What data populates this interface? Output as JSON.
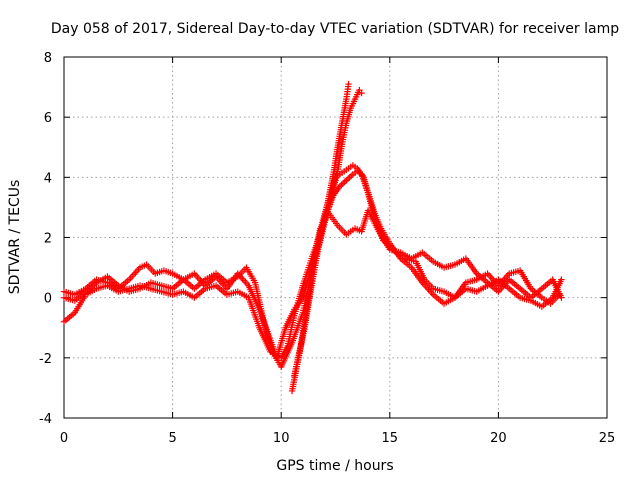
{
  "chart_data": {
    "type": "scatter",
    "title": "Day 058 of 2017, Sidereal Day-to-day VTEC variation (SDTVAR) for receiver lamp",
    "xlabel": "GPS time / hours",
    "ylabel": "SDTVAR / TECUs",
    "xlim": [
      0,
      25
    ],
    "ylim": [
      -4,
      8
    ],
    "xticks": [
      "0",
      "5",
      "10",
      "15",
      "20",
      "25"
    ],
    "yticks": [
      "-4",
      "-2",
      "0",
      "2",
      "4",
      "6",
      "8"
    ],
    "grid": true,
    "legend": "none",
    "marker": "plus",
    "color": "#ff0000",
    "series": [
      {
        "name": "track-1",
        "x": [
          0.0,
          0.5,
          1.0,
          1.5,
          2.0,
          2.5,
          3.0,
          3.5,
          3.8,
          4.2,
          4.6,
          5.0,
          5.5,
          6.0,
          6.5,
          7.0,
          7.5,
          8.0,
          8.4,
          8.8,
          9.2,
          9.6,
          10.0,
          10.5,
          11.0,
          11.3,
          11.6,
          11.9,
          12.2,
          12.5,
          12.7,
          12.9,
          13.1,
          13.3,
          13.5,
          13.8,
          14.1,
          14.4,
          14.7,
          15.0,
          15.3,
          15.7,
          16.2,
          16.6,
          17.0,
          17.5,
          18.0,
          18.5,
          19.0,
          19.5,
          20.0,
          20.5,
          21.0,
          21.5,
          22.0,
          22.4,
          22.8
        ],
        "y": [
          0.2,
          0.1,
          0.3,
          0.6,
          0.5,
          0.3,
          0.6,
          1.0,
          1.1,
          0.8,
          0.9,
          0.8,
          0.6,
          0.3,
          0.6,
          0.8,
          0.5,
          0.7,
          1.0,
          0.5,
          -0.8,
          -1.8,
          -2.3,
          -1.5,
          -0.5,
          0.5,
          1.5,
          2.5,
          3.3,
          4.0,
          4.1,
          4.2,
          4.3,
          4.4,
          4.3,
          4.0,
          3.2,
          2.4,
          1.9,
          1.7,
          1.5,
          1.3,
          1.2,
          0.6,
          0.3,
          0.2,
          0.0,
          0.5,
          0.6,
          0.8,
          0.4,
          0.8,
          0.9,
          0.3,
          0.0,
          -0.2,
          0.1
        ]
      },
      {
        "name": "track-2",
        "x": [
          0.0,
          0.5,
          1.0,
          1.5,
          2.0,
          2.5,
          3.0,
          3.5,
          4.0,
          4.5,
          5.0,
          5.5,
          6.0,
          6.5,
          7.0,
          7.5,
          8.0,
          8.5,
          9.0,
          9.5,
          10.0,
          10.3,
          10.6,
          11.0,
          11.4,
          11.8,
          12.1,
          12.4,
          12.7,
          13.0,
          13.3,
          13.5,
          13.7,
          14.0,
          14.3,
          14.6,
          15.0,
          15.5,
          16.0,
          16.5,
          17.0,
          17.5,
          18.0,
          18.5,
          19.0,
          19.5,
          20.0,
          20.5,
          21.0,
          21.5,
          22.0,
          22.5,
          22.9
        ],
        "y": [
          -0.8,
          -0.5,
          0.1,
          0.3,
          0.4,
          0.2,
          0.3,
          0.4,
          0.3,
          0.2,
          0.1,
          0.2,
          0.0,
          0.3,
          0.4,
          0.1,
          0.2,
          0.0,
          -1.0,
          -1.8,
          -2.0,
          -1.6,
          -0.6,
          0.4,
          1.3,
          2.1,
          2.8,
          3.4,
          3.7,
          3.9,
          4.1,
          4.2,
          4.1,
          3.5,
          2.8,
          2.3,
          1.8,
          1.3,
          1.0,
          0.5,
          0.1,
          -0.2,
          0.0,
          0.3,
          0.2,
          0.4,
          0.6,
          0.3,
          0.0,
          -0.1,
          -0.3,
          0.0,
          0.6
        ]
      },
      {
        "name": "track-3",
        "x": [
          0.0,
          0.5,
          1.0,
          1.5,
          2.0,
          2.5,
          3.0,
          3.5,
          4.0,
          4.5,
          5.0,
          5.5,
          6.0,
          6.5,
          7.0,
          7.5,
          8.0,
          8.5,
          9.0,
          9.4,
          9.8,
          10.2,
          10.6,
          11.0,
          11.4,
          11.8,
          12.2,
          12.6,
          13.0,
          13.4,
          13.7,
          14.0,
          14.5,
          15.0,
          15.5,
          16.0,
          16.5,
          17.0,
          17.5,
          18.0,
          18.5,
          19.0,
          19.5,
          20.0,
          20.5,
          21.0,
          21.5,
          22.0,
          22.5,
          22.9
        ],
        "y": [
          0.0,
          -0.1,
          0.2,
          0.5,
          0.7,
          0.4,
          0.2,
          0.3,
          0.5,
          0.4,
          0.3,
          0.6,
          0.8,
          0.4,
          0.7,
          0.3,
          0.8,
          0.4,
          -0.4,
          -1.2,
          -2.0,
          -1.0,
          -0.4,
          0.0,
          1.0,
          2.3,
          2.8,
          2.4,
          2.1,
          2.3,
          2.2,
          2.9,
          2.2,
          1.6,
          1.5,
          1.3,
          1.5,
          1.2,
          1.0,
          1.1,
          1.3,
          0.8,
          0.5,
          0.2,
          0.6,
          0.3,
          0.0,
          0.3,
          0.6,
          0.0
        ]
      },
      {
        "name": "track-4",
        "x": [
          10.5,
          10.8,
          11.1,
          11.4,
          11.7,
          12.0,
          12.3,
          12.6,
          12.8,
          13.0,
          13.2,
          13.4,
          13.6,
          13.7
        ],
        "y": [
          -3.1,
          -2.0,
          -0.9,
          0.4,
          1.6,
          2.5,
          3.3,
          4.2,
          5.1,
          5.8,
          6.3,
          6.6,
          6.9,
          6.8
        ]
      },
      {
        "name": "track-5",
        "x": [
          10.6,
          10.9,
          11.2,
          11.5,
          11.8,
          12.1,
          12.4,
          12.6,
          12.8,
          13.0,
          13.1
        ],
        "y": [
          -2.6,
          -1.6,
          -0.3,
          1.0,
          2.0,
          3.0,
          4.1,
          5.0,
          5.8,
          6.6,
          7.1
        ]
      }
    ]
  }
}
